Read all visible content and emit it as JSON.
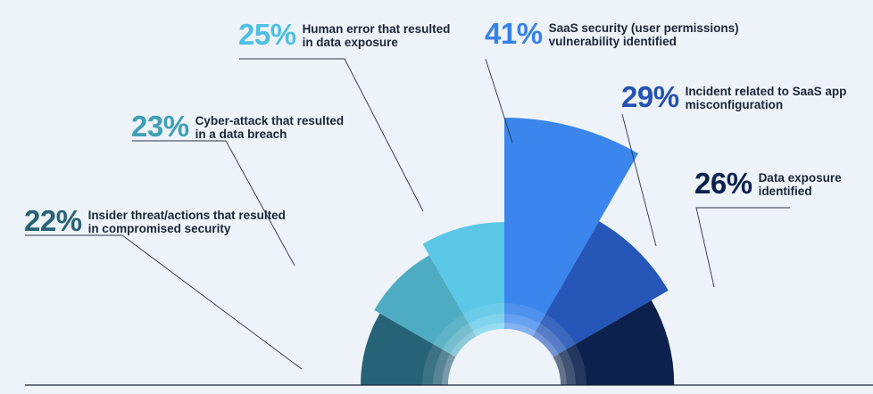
{
  "chart_data": {
    "type": "polar_area",
    "unit": "%",
    "rmax": 41,
    "categories": [
      {
        "label": "Insider threat/actions that resulted in compromised security",
        "value": 22,
        "percent": "22%",
        "color": "#266377",
        "text_color": "#266377"
      },
      {
        "label": "Cyber-attack that resulted in a data breach",
        "value": 23,
        "percent": "23%",
        "color": "#4eacc2",
        "text_color": "#3f9fb6"
      },
      {
        "label": "Human error that resulted in data exposure",
        "value": 25,
        "percent": "25%",
        "color": "#5bc7e7",
        "text_color": "#4fbfe3"
      },
      {
        "label": "SaaS security (user permissions) vulnerability identified",
        "value": 41,
        "percent": "41%",
        "color": "#3a86ed",
        "text_color": "#3581ea"
      },
      {
        "label": "Incident related to SaaS app misconfiguration",
        "value": 29,
        "percent": "29%",
        "color": "#2556b8",
        "text_color": "#2451b2"
      },
      {
        "label": "Data exposure identified",
        "value": 26,
        "percent": "26%",
        "color": "#0c214d",
        "text_color": "#0c214d"
      }
    ]
  }
}
